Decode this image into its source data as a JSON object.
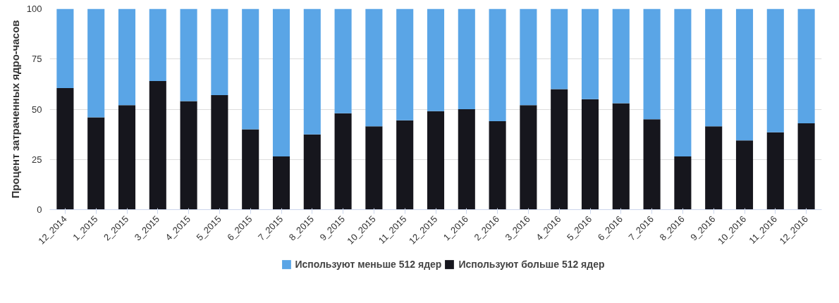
{
  "chart_data": {
    "type": "bar",
    "stacked": true,
    "ylabel": "Процент затраченных ядро-часов",
    "categories": [
      "12_2014",
      "1_2015",
      "2_2015",
      "3_2015",
      "4_2015",
      "5_2015",
      "6_2015",
      "7_2015",
      "8_2015",
      "9_2015",
      "10_2015",
      "11_2015",
      "12_2015",
      "1_2016",
      "2_2016",
      "3_2016",
      "4_2016",
      "5_2016",
      "6_2016",
      "7_2016",
      "8_2016",
      "9_2016",
      "10_2016",
      "11_2016",
      "12_2016"
    ],
    "series": [
      {
        "name": "Используют больше 512 ядер",
        "color": "#16161d",
        "values": [
          60.5,
          46,
          52,
          64,
          54,
          57,
          40,
          26.5,
          37.5,
          48,
          41.5,
          44.5,
          49,
          50,
          44,
          52,
          60,
          55,
          53,
          45,
          26.5,
          41.5,
          34.5,
          38.5,
          43
        ]
      },
      {
        "name": "Используют меньше 512 ядер",
        "color": "#5aa5e6",
        "values": [
          39.5,
          54,
          48,
          36,
          46,
          43,
          60,
          73.5,
          62.5,
          52,
          58.5,
          55.5,
          51,
          50,
          56,
          48,
          40,
          45,
          47,
          55,
          73.5,
          58.5,
          65.5,
          61.5,
          57
        ]
      }
    ],
    "ylim": [
      0,
      100
    ],
    "yticks": [
      0,
      25,
      50,
      75,
      100
    ],
    "grid": "y",
    "legend": "bottom"
  }
}
